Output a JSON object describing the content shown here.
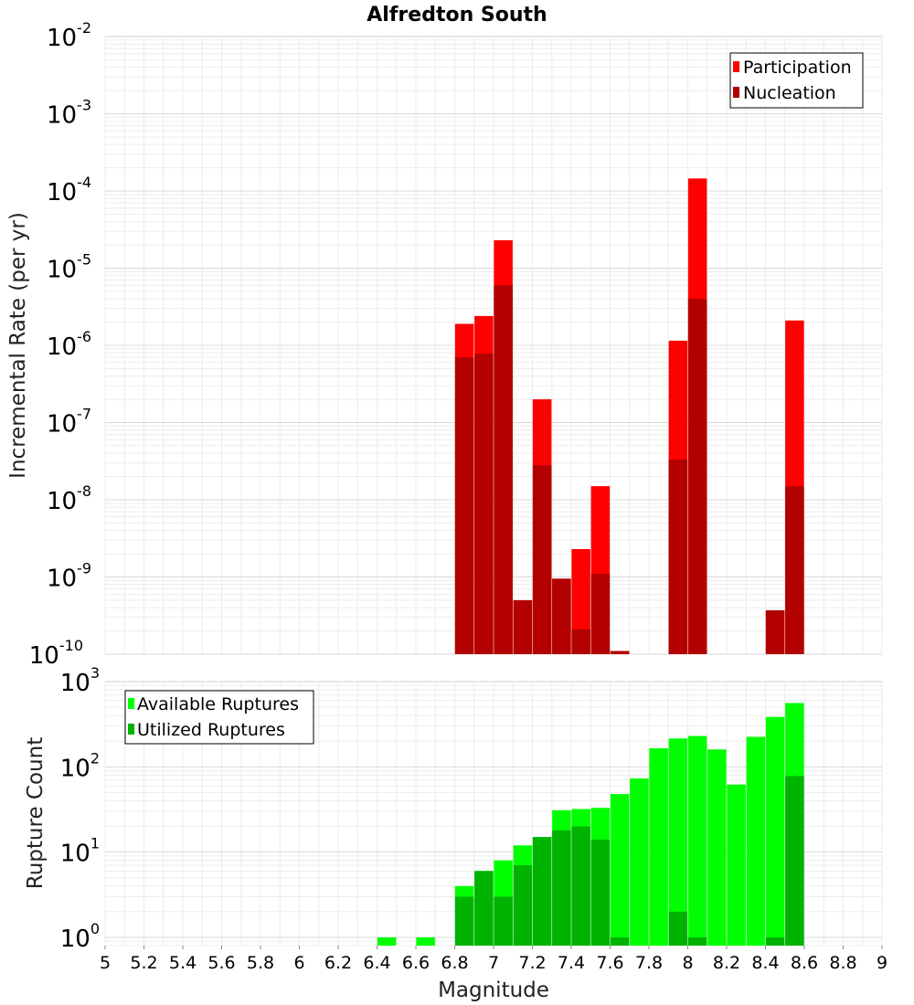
{
  "chart_data": [
    {
      "type": "bar",
      "title": "Alfredton South",
      "ylabel": "Incremental Rate (per yr)",
      "xlabel": "",
      "yscale": "log",
      "ylim": [
        1e-10,
        0.01
      ],
      "xlim": [
        5,
        9
      ],
      "grid": true,
      "legend_position": "top-right",
      "y_ticks": [
        {
          "base": "10",
          "exp": "-10"
        },
        {
          "base": "10",
          "exp": "-9"
        },
        {
          "base": "10",
          "exp": "-8"
        },
        {
          "base": "10",
          "exp": "-7"
        },
        {
          "base": "10",
          "exp": "-6"
        },
        {
          "base": "10",
          "exp": "-5"
        },
        {
          "base": "10",
          "exp": "-4"
        },
        {
          "base": "10",
          "exp": "-3"
        },
        {
          "base": "10",
          "exp": "-2"
        }
      ],
      "series": [
        {
          "name": "Participation",
          "color": "#ff0000",
          "points": [
            {
              "x": 6.85,
              "y": 1.9e-06
            },
            {
              "x": 6.95,
              "y": 2.4e-06
            },
            {
              "x": 7.05,
              "y": 2.3e-05
            },
            {
              "x": 7.15,
              "y": 5e-10
            },
            {
              "x": 7.25,
              "y": 2e-07
            },
            {
              "x": 7.35,
              "y": 9.5e-10
            },
            {
              "x": 7.45,
              "y": 2.3e-09
            },
            {
              "x": 7.55,
              "y": 1.5e-08
            },
            {
              "x": 7.65,
              "y": 1.1e-10
            },
            {
              "x": 7.95,
              "y": 1.15e-06
            },
            {
              "x": 8.05,
              "y": 0.000145
            },
            {
              "x": 8.45,
              "y": 3.7e-10
            },
            {
              "x": 8.55,
              "y": 2.1e-06
            }
          ]
        },
        {
          "name": "Nucleation",
          "color": "#b30000",
          "points": [
            {
              "x": 6.85,
              "y": 7e-07
            },
            {
              "x": 6.95,
              "y": 7.8e-07
            },
            {
              "x": 7.05,
              "y": 6e-06
            },
            {
              "x": 7.15,
              "y": 5e-10
            },
            {
              "x": 7.25,
              "y": 2.8e-08
            },
            {
              "x": 7.35,
              "y": 9.5e-10
            },
            {
              "x": 7.45,
              "y": 2.1e-10
            },
            {
              "x": 7.55,
              "y": 1.1e-09
            },
            {
              "x": 7.65,
              "y": 1.1e-10
            },
            {
              "x": 7.95,
              "y": 3.3e-08
            },
            {
              "x": 8.05,
              "y": 4e-06
            },
            {
              "x": 8.45,
              "y": 3.7e-10
            },
            {
              "x": 8.55,
              "y": 1.5e-08
            }
          ]
        }
      ]
    },
    {
      "type": "bar",
      "ylabel": "Rupture Count",
      "xlabel": "Magnitude",
      "yscale": "log",
      "ylim": [
        0.8,
        1000
      ],
      "xlim": [
        5,
        9
      ],
      "grid": true,
      "legend_position": "top-left",
      "x_ticks": [
        "5",
        "5.2",
        "5.4",
        "5.6",
        "5.8",
        "6",
        "6.2",
        "6.4",
        "6.6",
        "6.8",
        "7",
        "7.2",
        "7.4",
        "7.6",
        "7.8",
        "8",
        "8.2",
        "8.4",
        "8.6",
        "8.8",
        "9"
      ],
      "y_ticks": [
        {
          "base": "10",
          "exp": "0"
        },
        {
          "base": "10",
          "exp": "1"
        },
        {
          "base": "10",
          "exp": "2"
        },
        {
          "base": "10",
          "exp": "3"
        }
      ],
      "series": [
        {
          "name": "Available Ruptures",
          "color": "#00ff00",
          "points": [
            {
              "x": 6.45,
              "y": 1
            },
            {
              "x": 6.65,
              "y": 1
            },
            {
              "x": 6.85,
              "y": 4
            },
            {
              "x": 6.95,
              "y": 6
            },
            {
              "x": 7.05,
              "y": 8
            },
            {
              "x": 7.15,
              "y": 12
            },
            {
              "x": 7.25,
              "y": 15
            },
            {
              "x": 7.35,
              "y": 31
            },
            {
              "x": 7.45,
              "y": 32
            },
            {
              "x": 7.55,
              "y": 33
            },
            {
              "x": 7.65,
              "y": 48
            },
            {
              "x": 7.75,
              "y": 73
            },
            {
              "x": 7.85,
              "y": 165
            },
            {
              "x": 7.95,
              "y": 215
            },
            {
              "x": 8.05,
              "y": 230
            },
            {
              "x": 8.15,
              "y": 160
            },
            {
              "x": 8.25,
              "y": 62
            },
            {
              "x": 8.35,
              "y": 225
            },
            {
              "x": 8.45,
              "y": 385
            },
            {
              "x": 8.55,
              "y": 560
            }
          ]
        },
        {
          "name": "Utilized Ruptures",
          "color": "#00b300",
          "points": [
            {
              "x": 6.85,
              "y": 3
            },
            {
              "x": 6.95,
              "y": 6
            },
            {
              "x": 7.05,
              "y": 3
            },
            {
              "x": 7.15,
              "y": 7
            },
            {
              "x": 7.25,
              "y": 15
            },
            {
              "x": 7.35,
              "y": 18
            },
            {
              "x": 7.45,
              "y": 20
            },
            {
              "x": 7.55,
              "y": 14
            },
            {
              "x": 7.65,
              "y": 1
            },
            {
              "x": 7.95,
              "y": 2
            },
            {
              "x": 8.05,
              "y": 1
            },
            {
              "x": 8.45,
              "y": 1
            },
            {
              "x": 8.55,
              "y": 78
            }
          ]
        }
      ]
    }
  ]
}
